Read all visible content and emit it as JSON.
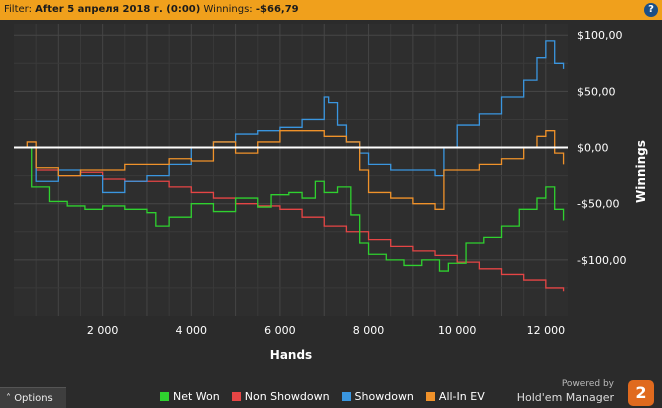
{
  "filter": {
    "prefix": "Filter:",
    "value": "After 5 апреля 2018 г. (0:00)",
    "winnings_label": "Winnings:",
    "winnings_value": "-$66,79"
  },
  "help_label": "?",
  "options_label": "Options",
  "brand": {
    "powered": "Powered by",
    "name": "Hold'em Manager",
    "logo": "2"
  },
  "colors": {
    "net_won": "#2fd12f",
    "non_showdown": "#e64545",
    "showdown": "#3a96e0",
    "allin_ev": "#f0922a",
    "zero_line": "#ffffff"
  },
  "chart_data": {
    "type": "line",
    "xlabel": "Hands",
    "ylabel": "Winnings",
    "xlim": [
      0,
      12500
    ],
    "ylim": [
      -150,
      110
    ],
    "x_ticks": [
      2000,
      4000,
      6000,
      8000,
      10000,
      12000
    ],
    "x_tick_labels": [
      "2 000",
      "4 000",
      "6 000",
      "8 000",
      "10 000",
      "12 000"
    ],
    "y_ticks": [
      100,
      50,
      0,
      -50,
      -100
    ],
    "y_tick_labels": [
      "$100,00",
      "$50,00",
      "$0,00",
      "-$50,00",
      "-$100,00"
    ],
    "grid": true,
    "legend_position": "bottom",
    "series": [
      {
        "name": "Net Won",
        "x": [
          0,
          400,
          800,
          1200,
          1600,
          2000,
          2500,
          3000,
          3200,
          3500,
          4000,
          4500,
          5000,
          5500,
          5800,
          6200,
          6500,
          6800,
          7000,
          7300,
          7600,
          7800,
          8000,
          8400,
          8800,
          9200,
          9600,
          9800,
          10200,
          10600,
          11000,
          11400,
          11800,
          12000,
          12200,
          12400
        ],
        "y": [
          0,
          -35,
          -48,
          -52,
          -55,
          -52,
          -55,
          -58,
          -70,
          -62,
          -50,
          -57,
          -45,
          -53,
          -42,
          -40,
          -45,
          -30,
          -40,
          -35,
          -60,
          -85,
          -95,
          -100,
          -105,
          -100,
          -110,
          -103,
          -85,
          -80,
          -70,
          -55,
          -45,
          -35,
          -55,
          -65
        ]
      },
      {
        "name": "Non Showdown",
        "x": [
          0,
          500,
          1000,
          1500,
          2000,
          2500,
          3000,
          3500,
          4000,
          4500,
          5000,
          5500,
          6000,
          6500,
          7000,
          7500,
          8000,
          8500,
          9000,
          9500,
          10000,
          10500,
          11000,
          11500,
          12000,
          12400
        ],
        "y": [
          0,
          -20,
          -25,
          -22,
          -28,
          -30,
          -30,
          -35,
          -40,
          -45,
          -50,
          -52,
          -55,
          -62,
          -70,
          -75,
          -82,
          -88,
          -92,
          -96,
          -102,
          -108,
          -113,
          -118,
          -125,
          -128
        ]
      },
      {
        "name": "Showdown",
        "x": [
          0,
          500,
          1000,
          1500,
          2000,
          2500,
          3000,
          3500,
          4000,
          4500,
          5000,
          5500,
          6000,
          6500,
          7000,
          7100,
          7300,
          7500,
          7800,
          8000,
          8500,
          9000,
          9500,
          9700,
          10000,
          10500,
          11000,
          11500,
          11800,
          12000,
          12200,
          12400
        ],
        "y": [
          0,
          -30,
          -20,
          -25,
          -40,
          -30,
          -25,
          -15,
          0,
          5,
          12,
          15,
          18,
          25,
          45,
          40,
          20,
          5,
          -5,
          -15,
          -20,
          -20,
          -25,
          0,
          20,
          30,
          45,
          60,
          80,
          95,
          75,
          70
        ]
      },
      {
        "name": "All-In EV",
        "x": [
          0,
          300,
          500,
          1000,
          1500,
          2000,
          2500,
          3000,
          3500,
          4000,
          4500,
          5000,
          5500,
          6000,
          6500,
          7000,
          7500,
          7800,
          8000,
          8500,
          9000,
          9500,
          9700,
          10000,
          10500,
          11000,
          11500,
          11800,
          12000,
          12200,
          12400
        ],
        "y": [
          0,
          5,
          -18,
          -25,
          -20,
          -20,
          -15,
          -15,
          -10,
          -12,
          5,
          -5,
          5,
          15,
          15,
          10,
          5,
          -20,
          -40,
          -45,
          -50,
          -55,
          -20,
          -20,
          -15,
          -10,
          0,
          10,
          15,
          -5,
          -15
        ]
      }
    ]
  }
}
